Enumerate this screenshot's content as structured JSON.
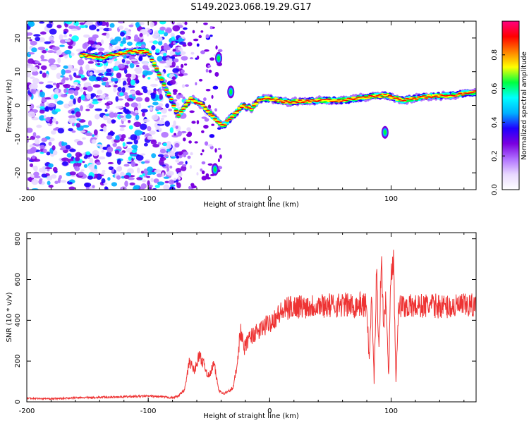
{
  "title": "S149.2023.068.19.29.G17",
  "chart_data": [
    {
      "type": "heatmap",
      "xlabel": "Height of straight line (km)",
      "ylabel": "Frequency (Hz)",
      "xlim": [
        -200,
        170
      ],
      "ylim": [
        -25,
        25
      ],
      "x_ticks": [
        -200,
        -100,
        0,
        100
      ],
      "y_ticks": [
        20,
        10,
        0,
        -10,
        -20
      ],
      "colorbar": {
        "label": "Normalized spectral amplitude",
        "range": [
          0,
          1
        ],
        "ticks": [
          "0.0",
          "0.2",
          "0.4",
          "0.6",
          "0.8"
        ],
        "colormap": [
          "#ffffff",
          "#e8d8ff",
          "#b070ff",
          "#7a00e0",
          "#2000ff",
          "#00b0ff",
          "#00ffff",
          "#00ff40",
          "#ffff00",
          "#ff8000",
          "#ff0000",
          "#ff0080"
        ]
      },
      "ridge": [
        {
          "x": -155,
          "y": 15
        },
        {
          "x": -140,
          "y": 14
        },
        {
          "x": -130,
          "y": 15
        },
        {
          "x": -115,
          "y": 16
        },
        {
          "x": -100,
          "y": 16
        },
        {
          "x": -75,
          "y": -3
        },
        {
          "x": -65,
          "y": 2
        },
        {
          "x": -55,
          "y": 0
        },
        {
          "x": -45,
          "y": -4
        },
        {
          "x": -38,
          "y": -6
        },
        {
          "x": -30,
          "y": -3
        },
        {
          "x": -22,
          "y": 0
        },
        {
          "x": -15,
          "y": -1
        },
        {
          "x": -8,
          "y": 2
        },
        {
          "x": 0,
          "y": 2
        },
        {
          "x": 15,
          "y": 1
        },
        {
          "x": 40,
          "y": 1.5
        },
        {
          "x": 60,
          "y": 1.5
        },
        {
          "x": 80,
          "y": 2.5
        },
        {
          "x": 95,
          "y": 3
        },
        {
          "x": 110,
          "y": 1.5
        },
        {
          "x": 125,
          "y": 2.5
        },
        {
          "x": 150,
          "y": 3
        },
        {
          "x": 170,
          "y": 4
        }
      ],
      "isolated_features": [
        {
          "x": -42,
          "y": 14
        },
        {
          "x": -45,
          "y": -19
        },
        {
          "x": -32,
          "y": 4
        },
        {
          "x": 95,
          "y": -8
        }
      ]
    },
    {
      "type": "line",
      "xlabel": "Height of straight line (km)",
      "ylabel": "SNR (10 * v/v)",
      "xlim": [
        -200,
        170
      ],
      "ylim": [
        0,
        830
      ],
      "x_ticks": [
        -200,
        -100,
        0,
        100
      ],
      "y_ticks": [
        0,
        200,
        400,
        600,
        800
      ],
      "line_color": "#ee3333",
      "x": [
        -200,
        -180,
        -160,
        -140,
        -120,
        -100,
        -90,
        -80,
        -75,
        -70,
        -66,
        -62,
        -58,
        -54,
        -50,
        -46,
        -42,
        -38,
        -34,
        -30,
        -27,
        -24,
        -21,
        -18,
        -14,
        -10,
        -6,
        -2,
        2,
        6,
        10,
        14,
        18,
        22,
        26,
        30,
        40,
        50,
        60,
        70,
        75,
        80,
        82,
        84,
        86,
        88,
        90,
        92,
        94,
        96,
        98,
        100,
        102,
        104,
        106,
        110,
        120,
        130,
        140,
        150,
        160,
        170
      ],
      "y": [
        18,
        15,
        20,
        22,
        25,
        28,
        25,
        20,
        30,
        60,
        200,
        150,
        230,
        180,
        120,
        190,
        60,
        40,
        50,
        70,
        180,
        350,
        260,
        300,
        330,
        340,
        360,
        380,
        400,
        420,
        440,
        455,
        465,
        470,
        468,
        470,
        475,
        472,
        478,
        470,
        480,
        470,
        200,
        520,
        100,
        640,
        260,
        700,
        360,
        520,
        120,
        650,
        700,
        100,
        470,
        470,
        468,
        472,
        470,
        465,
        472,
        470
      ]
    }
  ]
}
